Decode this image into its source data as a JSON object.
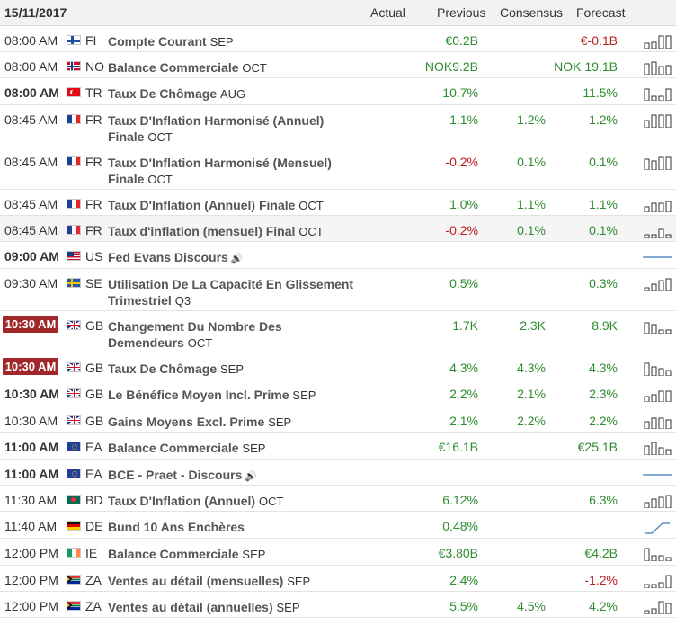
{
  "header": {
    "date": "15/11/2017",
    "col_actual": "Actual",
    "col_previous": "Previous",
    "col_consensus": "Consensus",
    "col_forecast": "Forecast"
  },
  "colors": {
    "positive": "#2e8b2e",
    "negative": "#b81e1e",
    "badge": "#a0282b"
  },
  "rows": [
    {
      "time": "08:00 AM",
      "time_style": "normal",
      "country": "FI",
      "flag": "flag-finland-icon",
      "event": "Compte Courant",
      "period": "SEP",
      "previous": "€0.2B",
      "previous_color": "green",
      "consensus": "",
      "forecast": "€-0.1B",
      "forecast_color": "red",
      "spark": [
        6,
        7,
        14,
        14
      ],
      "spark_type": "bars"
    },
    {
      "time": "08:00 AM",
      "time_style": "normal",
      "country": "NO",
      "flag": "flag-norway-icon",
      "event": "Balance Commerciale",
      "period": "OCT",
      "previous": "NOK9.2B",
      "previous_color": "green",
      "consensus": "",
      "forecast": "NOK 19.1B",
      "forecast_color": "green",
      "spark": [
        12,
        14,
        9,
        10
      ],
      "spark_type": "bars"
    },
    {
      "time": "08:00 AM",
      "time_style": "bold",
      "country": "TR",
      "flag": "flag-turkey-icon",
      "event": "Taux De Chômage",
      "period": "AUG",
      "previous": "10.7%",
      "previous_color": "green",
      "consensus": "",
      "forecast": "11.5%",
      "forecast_color": "green",
      "spark": [
        13,
        5,
        5,
        13
      ],
      "spark_type": "bars"
    },
    {
      "time": "08:45 AM",
      "time_style": "normal",
      "country": "FR",
      "flag": "flag-france-icon",
      "event": "Taux D'Inflation Harmonisé (Annuel) Finale",
      "period": "OCT",
      "previous": "1.1%",
      "previous_color": "green",
      "consensus": "1.2%",
      "forecast": "1.2%",
      "forecast_color": "green",
      "spark": [
        8,
        14,
        14,
        14
      ],
      "spark_type": "bars"
    },
    {
      "time": "08:45 AM",
      "time_style": "normal",
      "country": "FR",
      "flag": "flag-france-icon",
      "event": "Taux D'Inflation Harmonisé (Mensuel) Finale",
      "period": "OCT",
      "previous": "-0.2%",
      "previous_color": "red",
      "consensus": "0.1%",
      "forecast": "0.1%",
      "forecast_color": "green",
      "spark": [
        12,
        10,
        14,
        14
      ],
      "spark_type": "bars"
    },
    {
      "time": "08:45 AM",
      "time_style": "normal",
      "country": "FR",
      "flag": "flag-france-icon",
      "event": "Taux D'Inflation (Annuel) Finale",
      "period": "OCT",
      "previous": "1.0%",
      "previous_color": "green",
      "consensus": "1.1%",
      "forecast": "1.1%",
      "forecast_color": "green",
      "spark": [
        6,
        10,
        10,
        12
      ],
      "spark_type": "bars"
    },
    {
      "time": "08:45 AM",
      "time_style": "normal",
      "country": "FR",
      "flag": "flag-france-icon",
      "event": "Taux d'inflation (mensuel) Final",
      "period": "OCT",
      "previous": "-0.2%",
      "previous_color": "red",
      "consensus": "0.1%",
      "forecast": "0.1%",
      "forecast_color": "green",
      "spark": [
        4,
        4,
        10,
        4
      ],
      "spark_type": "bars"
    },
    {
      "time": "09:00 AM",
      "time_style": "bold",
      "country": "US",
      "flag": "flag-usa-icon",
      "event": "Fed Evans Discours",
      "period": "",
      "speech": true,
      "previous": "",
      "previous_color": "green",
      "consensus": "",
      "forecast": "",
      "forecast_color": "green",
      "spark": [],
      "spark_type": "flat"
    },
    {
      "time": "09:30 AM",
      "time_style": "normal",
      "country": "SE",
      "flag": "flag-sweden-icon",
      "event": "Utilisation De La Capacité En Glissement Trimestriel",
      "period": "Q3",
      "previous": "0.5%",
      "previous_color": "green",
      "consensus": "",
      "forecast": "0.3%",
      "forecast_color": "green",
      "spark": [
        4,
        8,
        12,
        14
      ],
      "spark_type": "bars"
    },
    {
      "time": "10:30 AM",
      "time_style": "badge",
      "country": "GB",
      "flag": "flag-uk-icon",
      "event": "Changement Du Nombre Des Demendeurs",
      "period": "OCT",
      "previous": "1.7K",
      "previous_color": "green",
      "consensus": "2.3K",
      "forecast": "8.9K",
      "forecast_color": "green",
      "spark": [
        12,
        10,
        4,
        4
      ],
      "spark_type": "bars"
    },
    {
      "time": "10:30 AM",
      "time_style": "badge",
      "country": "GB",
      "flag": "flag-uk-icon",
      "event": "Taux De Chômage",
      "period": "SEP",
      "previous": "4.3%",
      "previous_color": "green",
      "consensus": "4.3%",
      "forecast": "4.3%",
      "forecast_color": "green",
      "spark": [
        14,
        10,
        8,
        6
      ],
      "spark_type": "bars"
    },
    {
      "time": "10:30 AM",
      "time_style": "bold",
      "country": "GB",
      "flag": "flag-uk-icon",
      "event": "Le Bénéfice Moyen Incl. Prime",
      "period": "SEP",
      "previous": "2.2%",
      "previous_color": "green",
      "consensus": "2.1%",
      "forecast": "2.3%",
      "forecast_color": "green",
      "spark": [
        6,
        8,
        12,
        12
      ],
      "spark_type": "bars"
    },
    {
      "time": "10:30 AM",
      "time_style": "normal",
      "country": "GB",
      "flag": "flag-uk-icon",
      "event": "Gains Moyens Excl. Prime",
      "period": "SEP",
      "previous": "2.1%",
      "previous_color": "green",
      "consensus": "2.2%",
      "forecast": "2.2%",
      "forecast_color": "green",
      "spark": [
        8,
        12,
        12,
        10
      ],
      "spark_type": "bars"
    },
    {
      "time": "11:00 AM",
      "time_style": "bold",
      "country": "EA",
      "flag": "flag-eu-icon",
      "event": "Balance Commerciale",
      "period": "SEP",
      "previous": "€16.1B",
      "previous_color": "green",
      "consensus": "",
      "forecast": "€25.1B",
      "forecast_color": "green",
      "spark": [
        10,
        14,
        8,
        6
      ],
      "spark_type": "bars"
    },
    {
      "time": "11:00 AM",
      "time_style": "bold",
      "country": "EA",
      "flag": "flag-eu-icon",
      "event": "BCE - Praet - Discours",
      "period": "",
      "speech": true,
      "previous": "",
      "previous_color": "green",
      "consensus": "",
      "forecast": "",
      "forecast_color": "green",
      "spark": [],
      "spark_type": "flat"
    },
    {
      "time": "11:30 AM",
      "time_style": "normal",
      "country": "BD",
      "flag": "flag-bangladesh-icon",
      "event": "Taux D'Inflation (Annuel)",
      "period": "OCT",
      "previous": "6.12%",
      "previous_color": "green",
      "consensus": "",
      "forecast": "6.3%",
      "forecast_color": "green",
      "spark": [
        6,
        10,
        12,
        14
      ],
      "spark_type": "bars"
    },
    {
      "time": "11:40 AM",
      "time_style": "normal",
      "country": "DE",
      "flag": "flag-germany-icon",
      "event": "Bund 10 Ans Enchères",
      "period": "",
      "previous": "0.48%",
      "previous_color": "green",
      "consensus": "",
      "forecast": "",
      "forecast_color": "green",
      "spark": [],
      "spark_type": "line"
    },
    {
      "time": "12:00 PM",
      "time_style": "normal",
      "country": "IE",
      "flag": "flag-ireland-icon",
      "event": "Balance Commerciale",
      "period": "SEP",
      "previous": "€3.80B",
      "previous_color": "green",
      "consensus": "",
      "forecast": "€4.2B",
      "forecast_color": "green",
      "spark": [
        14,
        6,
        6,
        4
      ],
      "spark_type": "bars"
    },
    {
      "time": "12:00 PM",
      "time_style": "normal",
      "country": "ZA",
      "flag": "flag-south-africa-icon",
      "event": "Ventes au détail (mensuelles)",
      "period": "SEP",
      "previous": "2.4%",
      "previous_color": "green",
      "consensus": "",
      "forecast": "-1.2%",
      "forecast_color": "red",
      "spark": [
        4,
        4,
        6,
        14
      ],
      "spark_type": "bars"
    },
    {
      "time": "12:00 PM",
      "time_style": "normal",
      "country": "ZA",
      "flag": "flag-south-africa-icon",
      "event": "Ventes au détail (annuelles)",
      "period": "SEP",
      "previous": "5.5%",
      "previous_color": "green",
      "consensus": "4.5%",
      "forecast": "4.2%",
      "forecast_color": "green",
      "spark": [
        4,
        6,
        14,
        12
      ],
      "spark_type": "bars"
    }
  ]
}
